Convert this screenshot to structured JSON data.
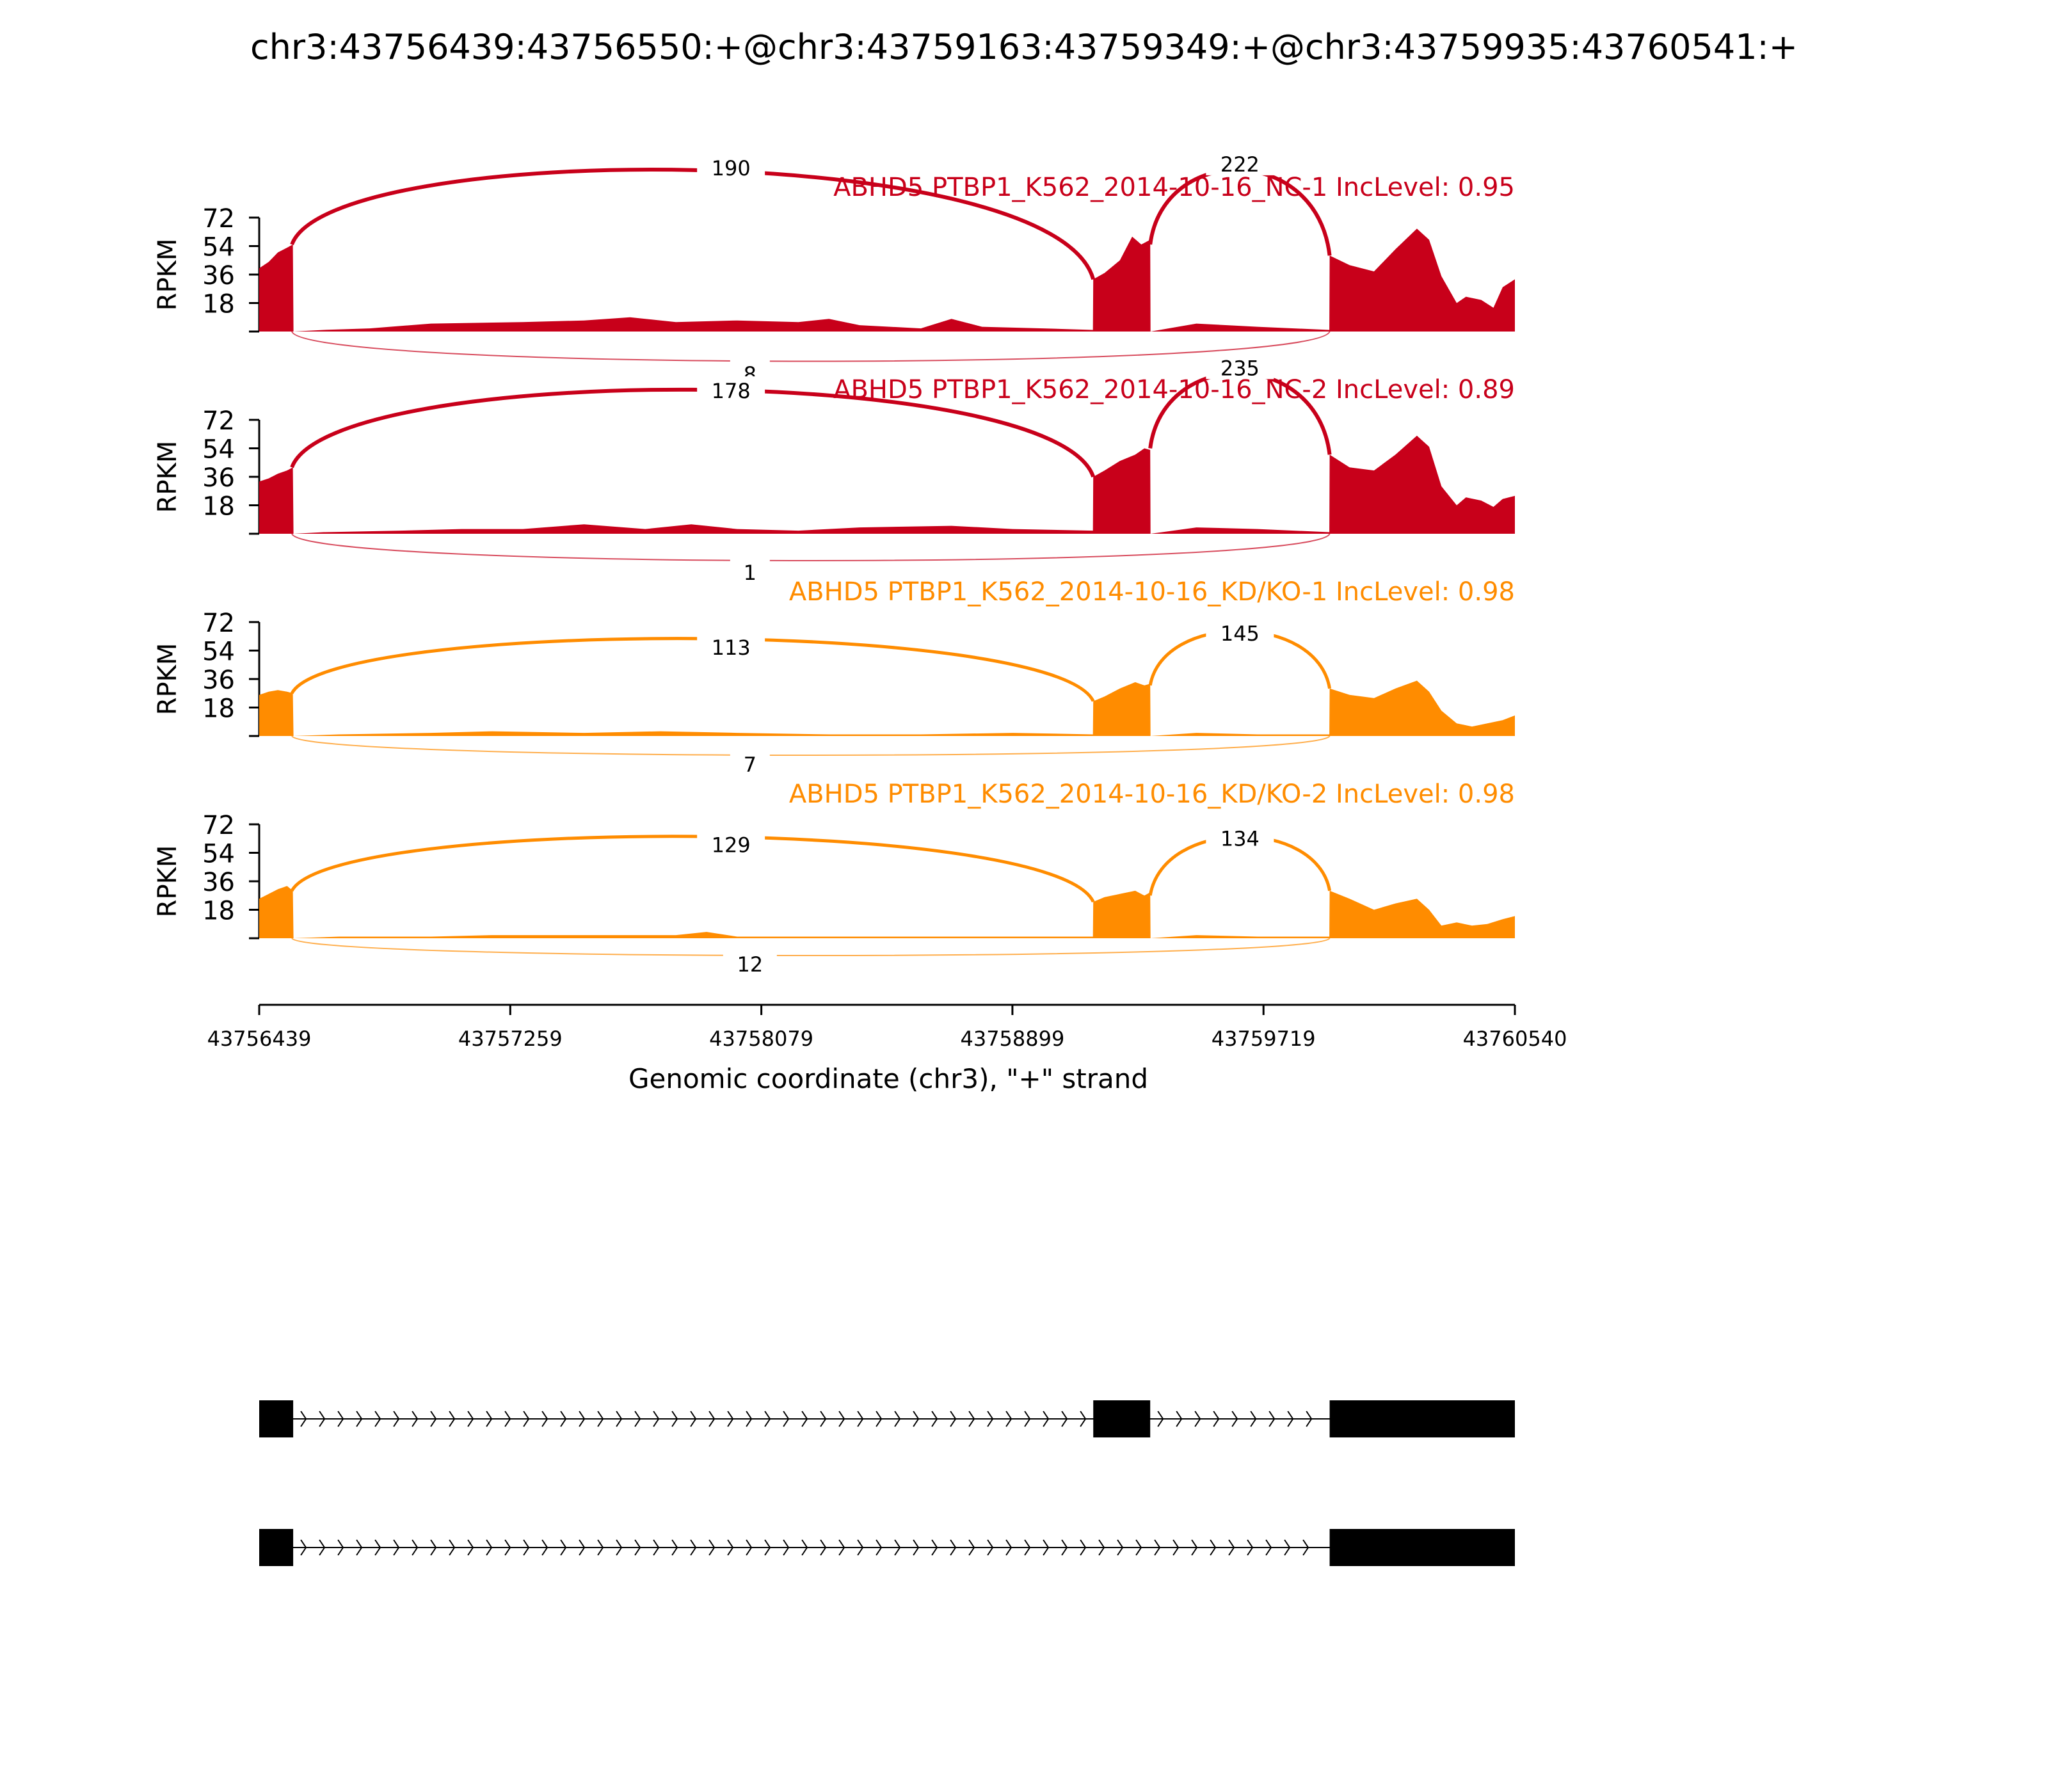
{
  "chart_data": {
    "type": "area",
    "title": "chr3:43756439:43756550:+@chr3:43759163:43759349:+@chr3:43759935:43760541:+",
    "xlabel": "Genomic coordinate (chr3), \"+\" strand",
    "ylabel": "RPKM",
    "xlim": [
      43756439,
      43760540
    ],
    "xticks": [
      "43756439",
      "43757259",
      "43758079",
      "43758899",
      "43759719",
      "43760540"
    ],
    "ylim": [
      0,
      72
    ],
    "yticks": [
      "18",
      "36",
      "54",
      "72"
    ],
    "exons": [
      [
        43756439,
        43756550
      ],
      [
        43759163,
        43759349
      ],
      [
        43759935,
        43760541
      ]
    ],
    "series": [
      {
        "name": "ABHD5 PTBP1_K562_2014-10-16_NC-1 IncLevel: 0.95",
        "color": "#c8001a",
        "junctions": {
          "exon1_exon2": "190",
          "exon2_exon3": "222",
          "exon1_exon3": "8"
        },
        "coverage": [
          [
            43756439,
            40
          ],
          [
            43756470,
            44
          ],
          [
            43756500,
            50
          ],
          [
            43756530,
            53
          ],
          [
            43756549,
            55
          ],
          [
            43756551,
            0
          ],
          [
            43756650,
            1
          ],
          [
            43756800,
            2
          ],
          [
            43757000,
            5
          ],
          [
            43757300,
            6
          ],
          [
            43757500,
            7
          ],
          [
            43757650,
            9
          ],
          [
            43757800,
            6
          ],
          [
            43758000,
            7
          ],
          [
            43758200,
            6
          ],
          [
            43758300,
            8
          ],
          [
            43758400,
            4
          ],
          [
            43758600,
            2
          ],
          [
            43758700,
            8
          ],
          [
            43758800,
            3
          ],
          [
            43759000,
            2
          ],
          [
            43759162,
            1
          ],
          [
            43759163,
            33
          ],
          [
            43759200,
            37
          ],
          [
            43759250,
            45
          ],
          [
            43759290,
            60
          ],
          [
            43759320,
            55
          ],
          [
            43759349,
            58
          ],
          [
            43759350,
            0
          ],
          [
            43759500,
            5
          ],
          [
            43759700,
            3
          ],
          [
            43759934,
            1
          ],
          [
            43759935,
            48
          ],
          [
            43760000,
            42
          ],
          [
            43760080,
            38
          ],
          [
            43760150,
            52
          ],
          [
            43760220,
            65
          ],
          [
            43760260,
            58
          ],
          [
            43760300,
            35
          ],
          [
            43760350,
            18
          ],
          [
            43760380,
            22
          ],
          [
            43760430,
            20
          ],
          [
            43760470,
            15
          ],
          [
            43760500,
            28
          ],
          [
            43760540,
            33
          ]
        ]
      },
      {
        "name": "ABHD5 PTBP1_K562_2014-10-16_NC-2 IncLevel: 0.89",
        "color": "#c8001a",
        "junctions": {
          "exon1_exon2": "178",
          "exon2_exon3": "235",
          "exon1_exon3": "1"
        },
        "coverage": [
          [
            43756439,
            33
          ],
          [
            43756470,
            35
          ],
          [
            43756500,
            38
          ],
          [
            43756530,
            40
          ],
          [
            43756549,
            42
          ],
          [
            43756551,
            0
          ],
          [
            43756650,
            1
          ],
          [
            43756900,
            2
          ],
          [
            43757100,
            3
          ],
          [
            43757300,
            3
          ],
          [
            43757500,
            6
          ],
          [
            43757700,
            3
          ],
          [
            43757850,
            6
          ],
          [
            43758000,
            3
          ],
          [
            43758200,
            2
          ],
          [
            43758400,
            4
          ],
          [
            43758700,
            5
          ],
          [
            43758900,
            3
          ],
          [
            43759162,
            2
          ],
          [
            43759163,
            36
          ],
          [
            43759200,
            40
          ],
          [
            43759250,
            46
          ],
          [
            43759300,
            50
          ],
          [
            43759330,
            54
          ],
          [
            43759349,
            53
          ],
          [
            43759350,
            0
          ],
          [
            43759500,
            4
          ],
          [
            43759700,
            3
          ],
          [
            43759934,
            1
          ],
          [
            43759935,
            50
          ],
          [
            43760000,
            42
          ],
          [
            43760080,
            40
          ],
          [
            43760150,
            50
          ],
          [
            43760220,
            62
          ],
          [
            43760260,
            55
          ],
          [
            43760300,
            30
          ],
          [
            43760350,
            18
          ],
          [
            43760380,
            23
          ],
          [
            43760430,
            21
          ],
          [
            43760470,
            17
          ],
          [
            43760500,
            22
          ],
          [
            43760540,
            24
          ]
        ]
      },
      {
        "name": "ABHD5 PTBP1_K562_2014-10-16_KD/KO-1 IncLevel: 0.98",
        "color": "#ff8c00",
        "junctions": {
          "exon1_exon2": "113",
          "exon2_exon3": "145",
          "exon1_exon3": "7"
        },
        "coverage": [
          [
            43756439,
            26
          ],
          [
            43756470,
            28
          ],
          [
            43756500,
            29
          ],
          [
            43756530,
            28
          ],
          [
            43756549,
            27
          ],
          [
            43756551,
            0
          ],
          [
            43756700,
            1
          ],
          [
            43757000,
            2
          ],
          [
            43757200,
            3
          ],
          [
            43757500,
            2
          ],
          [
            43757750,
            3
          ],
          [
            43758000,
            2
          ],
          [
            43758300,
            1
          ],
          [
            43758600,
            1
          ],
          [
            43758900,
            2
          ],
          [
            43759162,
            1
          ],
          [
            43759163,
            22
          ],
          [
            43759200,
            25
          ],
          [
            43759250,
            30
          ],
          [
            43759300,
            34
          ],
          [
            43759330,
            32
          ],
          [
            43759349,
            33
          ],
          [
            43759350,
            0
          ],
          [
            43759500,
            2
          ],
          [
            43759700,
            1
          ],
          [
            43759934,
            1
          ],
          [
            43759935,
            30
          ],
          [
            43760000,
            26
          ],
          [
            43760080,
            24
          ],
          [
            43760150,
            30
          ],
          [
            43760220,
            35
          ],
          [
            43760260,
            28
          ],
          [
            43760300,
            16
          ],
          [
            43760350,
            8
          ],
          [
            43760400,
            6
          ],
          [
            43760450,
            8
          ],
          [
            43760500,
            10
          ],
          [
            43760540,
            13
          ]
        ]
      },
      {
        "name": "ABHD5 PTBP1_K562_2014-10-16_KD/KO-2 IncLevel: 0.98",
        "color": "#ff8c00",
        "junctions": {
          "exon1_exon2": "129",
          "exon2_exon3": "134",
          "exon1_exon3": "12"
        },
        "coverage": [
          [
            43756439,
            25
          ],
          [
            43756470,
            28
          ],
          [
            43756500,
            31
          ],
          [
            43756530,
            33
          ],
          [
            43756549,
            30
          ],
          [
            43756551,
            0
          ],
          [
            43756700,
            1
          ],
          [
            43757000,
            1
          ],
          [
            43757200,
            2
          ],
          [
            43757500,
            2
          ],
          [
            43757800,
            2
          ],
          [
            43757900,
            4
          ],
          [
            43758000,
            1
          ],
          [
            43758300,
            1
          ],
          [
            43758700,
            1
          ],
          [
            43759162,
            1
          ],
          [
            43759163,
            23
          ],
          [
            43759200,
            26
          ],
          [
            43759250,
            28
          ],
          [
            43759300,
            30
          ],
          [
            43759330,
            27
          ],
          [
            43759349,
            29
          ],
          [
            43759350,
            0
          ],
          [
            43759500,
            2
          ],
          [
            43759700,
            1
          ],
          [
            43759934,
            1
          ],
          [
            43759935,
            30
          ],
          [
            43760000,
            25
          ],
          [
            43760080,
            18
          ],
          [
            43760150,
            22
          ],
          [
            43760220,
            25
          ],
          [
            43760260,
            18
          ],
          [
            43760300,
            8
          ],
          [
            43760350,
            10
          ],
          [
            43760400,
            8
          ],
          [
            43760450,
            9
          ],
          [
            43760500,
            12
          ],
          [
            43760540,
            14
          ]
        ]
      }
    ],
    "isoforms": [
      {
        "exons": [
          [
            43756439,
            43756550
          ],
          [
            43759163,
            43759349
          ],
          [
            43759935,
            43760541
          ]
        ]
      },
      {
        "exons": [
          [
            43756439,
            43756550
          ],
          [
            43759935,
            43760541
          ]
        ]
      }
    ]
  }
}
